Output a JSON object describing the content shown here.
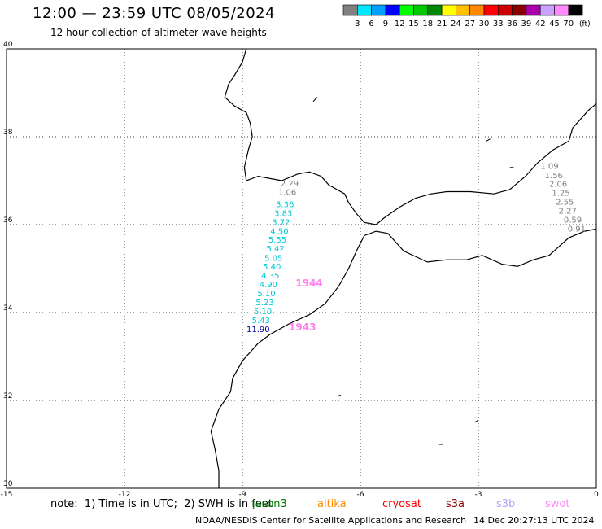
{
  "header": {
    "title": "12:00 — 23:59 UTC 08/05/2024",
    "subtitle": "12 hour collection of altimeter wave heights"
  },
  "colorbar": {
    "colors": [
      "#808080",
      "#00e8ff",
      "#00a0ff",
      "#0000ff",
      "#00ff00",
      "#00c800",
      "#008800",
      "#ffff00",
      "#ffc000",
      "#ff8800",
      "#ff0000",
      "#cc0000",
      "#880000",
      "#aa00aa",
      "#cca0ff",
      "#ff88ff",
      "#000000"
    ],
    "labels": [
      "3",
      "6",
      "9",
      "12",
      "15",
      "18",
      "21",
      "24",
      "27",
      "30",
      "33",
      "36",
      "39",
      "42",
      "45",
      "70"
    ],
    "unit": "(ft)"
  },
  "axes": {
    "lat_labels": [
      "40",
      "38",
      "36",
      "34",
      "32",
      "30"
    ],
    "lon_labels": [
      "-15",
      "-12",
      "-9",
      "-6",
      "-3",
      "0"
    ]
  },
  "tracks": {
    "track_cyan": {
      "points": [
        {
          "lon": -7.8,
          "lat": 36.87,
          "value": "2.29",
          "color": "#808080"
        },
        {
          "lon": -7.86,
          "lat": 36.68,
          "value": "1.06",
          "color": "#808080"
        },
        {
          "lon": -7.92,
          "lat": 36.4,
          "value": "3.36",
          "color": "#00c8d8"
        },
        {
          "lon": -7.96,
          "lat": 36.19,
          "value": "3.83",
          "color": "#00c8d8"
        },
        {
          "lon": -8.02,
          "lat": 35.99,
          "value": "3.72",
          "color": "#00c8d8"
        },
        {
          "lon": -8.06,
          "lat": 35.79,
          "value": "4.50",
          "color": "#00c8d8"
        },
        {
          "lon": -8.11,
          "lat": 35.59,
          "value": "5.55",
          "color": "#00c8d8"
        },
        {
          "lon": -8.16,
          "lat": 35.39,
          "value": "5.42",
          "color": "#00c8d8"
        },
        {
          "lon": -8.21,
          "lat": 35.18,
          "value": "5.05",
          "color": "#00c8d8"
        },
        {
          "lon": -8.25,
          "lat": 34.98,
          "value": "5.40",
          "color": "#00c8d8"
        },
        {
          "lon": -8.29,
          "lat": 34.78,
          "value": "4.35",
          "color": "#00c8d8"
        },
        {
          "lon": -8.34,
          "lat": 34.57,
          "value": "4.90",
          "color": "#00c8d8"
        },
        {
          "lon": -8.39,
          "lat": 34.37,
          "value": "5.10",
          "color": "#00c8d8"
        },
        {
          "lon": -8.43,
          "lat": 34.17,
          "value": "5.23",
          "color": "#00c8d8"
        },
        {
          "lon": -8.48,
          "lat": 33.96,
          "value": "5.10",
          "color": "#00c8d8"
        },
        {
          "lon": -8.53,
          "lat": 33.76,
          "value": "5.43",
          "color": "#00c8d8"
        },
        {
          "lon": -8.6,
          "lat": 33.56,
          "value": "11.90",
          "color": "#0000a0"
        }
      ]
    },
    "track_grey": {
      "points": [
        {
          "lon": -1.19,
          "lat": 37.27,
          "value": "1.09",
          "color": "#808080"
        },
        {
          "lon": -1.08,
          "lat": 37.06,
          "value": "1.56",
          "color": "#808080"
        },
        {
          "lon": -0.97,
          "lat": 36.86,
          "value": "2.06",
          "color": "#808080"
        },
        {
          "lon": -0.9,
          "lat": 36.66,
          "value": "1.25",
          "color": "#808080"
        },
        {
          "lon": -0.8,
          "lat": 36.45,
          "value": "2.55",
          "color": "#808080"
        },
        {
          "lon": -0.73,
          "lat": 36.25,
          "value": "2.27",
          "color": "#808080"
        },
        {
          "lon": -0.6,
          "lat": 36.05,
          "value": "0.59",
          "color": "#808080"
        },
        {
          "lon": -0.5,
          "lat": 35.84,
          "value": "0.91",
          "color": "#808080"
        }
      ]
    }
  },
  "time_labels": [
    {
      "lon": -7.65,
      "lat": 34.59,
      "text": "1944",
      "color": "#ff80ee"
    },
    {
      "lon": -7.82,
      "lat": 33.59,
      "text": "1943",
      "color": "#ff80ee"
    }
  ],
  "note": {
    "text": "note:  1) Time is in UTC;  2) SWH is in feet"
  },
  "satellite_legend": [
    {
      "name": "jason3",
      "color": "#008000"
    },
    {
      "name": "altika",
      "color": "#ff8c00"
    },
    {
      "name": "cryosat",
      "color": "#ff0000"
    },
    {
      "name": "s3a",
      "color": "#8b0000"
    },
    {
      "name": "s3b",
      "color": "#b8a0ff"
    },
    {
      "name": "swot",
      "color": "#ff88ff"
    }
  ],
  "footer": {
    "left": "NOAA/NESDIS Center for Satellite Applications and Research",
    "right": "14 Dec 20:27:13 UTC 2024"
  }
}
